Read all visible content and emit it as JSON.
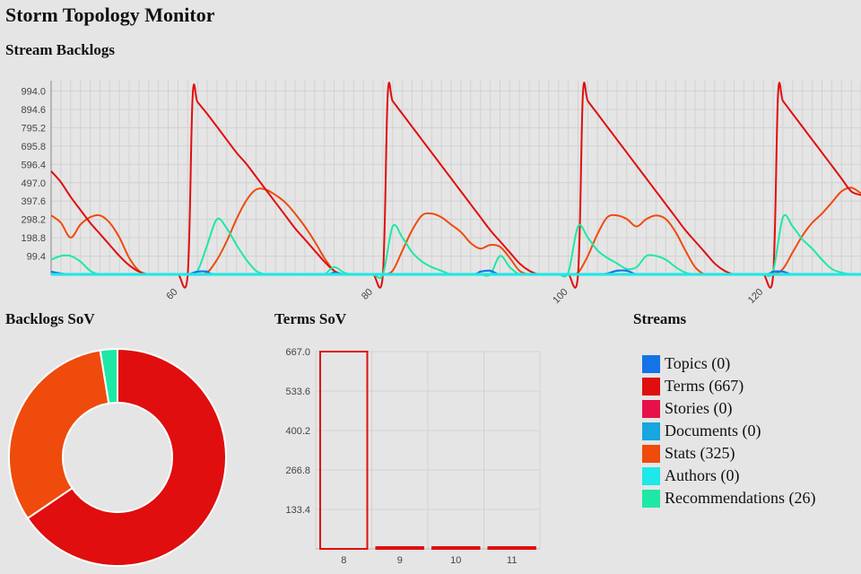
{
  "app": {
    "title": "Storm Topology Monitor"
  },
  "colors": {
    "Topics": "#1473e6",
    "Terms": "#e00e0e",
    "Stories": "#e8104a",
    "Documents": "#17a6e0",
    "Stats": "#ee4b0c",
    "Authors": "#1ee8e8",
    "Recommendations": "#1ee8a6"
  },
  "chart_data": [
    {
      "type": "line",
      "title": "Stream Backlogs",
      "xlim": [
        47,
        130
      ],
      "ylim": [
        0,
        1050
      ],
      "yticks": [
        "994.0",
        "894.6",
        "795.2",
        "695.8",
        "596.4",
        "497.0",
        "397.6",
        "298.2",
        "198.8",
        "99.4"
      ],
      "yticks_values": [
        994.0,
        894.6,
        795.2,
        695.8,
        596.4,
        497.0,
        397.6,
        298.2,
        198.8,
        99.4
      ],
      "xticks": [
        "60",
        "80",
        "100",
        "120"
      ],
      "xticks_values": [
        60,
        80,
        100,
        120
      ],
      "grid": true,
      "series": [
        {
          "name": "Terms",
          "color": "#e00e0e",
          "x": [
            47,
            48,
            49,
            50,
            51,
            52,
            53,
            54,
            55,
            56,
            57,
            58,
            59,
            60,
            61,
            61.5,
            62,
            63,
            64,
            65,
            66,
            67,
            68,
            69,
            70,
            71,
            72,
            73,
            74,
            75,
            76,
            77,
            78,
            79,
            80,
            81,
            81.5,
            82,
            83,
            84,
            85,
            86,
            87,
            88,
            89,
            90,
            91,
            92,
            93,
            94,
            95,
            96,
            97,
            98,
            99,
            100,
            101,
            101.5,
            102,
            103,
            104,
            105,
            106,
            107,
            108,
            109,
            110,
            111,
            112,
            113,
            114,
            115,
            116,
            117,
            118,
            119,
            120,
            121,
            121.5,
            122,
            123,
            124,
            125,
            126,
            127,
            128,
            129,
            130
          ],
          "y": [
            560,
            500,
            420,
            350,
            280,
            220,
            160,
            100,
            50,
            15,
            0,
            0,
            0,
            0,
            0,
            965,
            935,
            870,
            800,
            730,
            660,
            600,
            530,
            460,
            390,
            320,
            250,
            190,
            130,
            70,
            20,
            0,
            0,
            0,
            0,
            0,
            975,
            940,
            870,
            800,
            730,
            660,
            590,
            520,
            450,
            380,
            310,
            240,
            180,
            120,
            60,
            20,
            0,
            0,
            0,
            0,
            0,
            975,
            940,
            870,
            800,
            730,
            660,
            590,
            520,
            450,
            380,
            310,
            240,
            180,
            120,
            60,
            20,
            0,
            0,
            0,
            0,
            0,
            975,
            940,
            870,
            800,
            730,
            660,
            590,
            520,
            450,
            430
          ]
        },
        {
          "name": "Stats",
          "color": "#ee4b0c",
          "x": [
            47,
            48,
            49,
            50,
            51,
            52,
            53,
            54,
            55,
            56,
            57,
            58,
            59,
            60,
            61,
            62,
            63,
            64,
            65,
            66,
            67,
            68,
            69,
            70,
            71,
            72,
            73,
            74,
            75,
            76,
            77,
            78,
            79,
            80,
            81,
            82,
            83,
            84,
            85,
            86,
            87,
            88,
            89,
            90,
            91,
            92,
            93,
            94,
            95,
            96,
            97,
            98,
            99,
            100,
            101,
            102,
            103,
            104,
            105,
            106,
            107,
            108,
            109,
            110,
            111,
            112,
            113,
            114,
            115,
            116,
            117,
            118,
            119,
            120,
            121,
            122,
            123,
            124,
            125,
            126,
            127,
            128,
            129,
            130
          ],
          "y": [
            320,
            280,
            200,
            270,
            310,
            320,
            280,
            200,
            90,
            20,
            0,
            0,
            0,
            0,
            0,
            0,
            10,
            80,
            180,
            300,
            400,
            460,
            460,
            430,
            390,
            330,
            260,
            180,
            90,
            20,
            0,
            0,
            0,
            0,
            0,
            20,
            130,
            240,
            320,
            330,
            310,
            270,
            230,
            170,
            140,
            160,
            150,
            90,
            20,
            0,
            0,
            0,
            0,
            0,
            10,
            100,
            220,
            310,
            320,
            300,
            260,
            300,
            320,
            300,
            230,
            130,
            40,
            0,
            0,
            0,
            0,
            0,
            0,
            0,
            0,
            30,
            120,
            210,
            280,
            330,
            390,
            450,
            470,
            440
          ]
        },
        {
          "name": "Recommendations",
          "color": "#1ee8a6",
          "x": [
            47,
            48,
            49,
            50,
            51,
            52,
            53,
            54,
            55,
            56,
            57,
            58,
            59,
            60,
            61,
            62,
            63,
            64,
            65,
            66,
            67,
            68,
            69,
            70,
            71,
            72,
            73,
            74,
            75,
            76,
            77,
            78,
            79,
            80,
            81,
            82,
            83,
            84,
            85,
            86,
            87,
            88,
            89,
            90,
            91,
            92,
            93,
            94,
            95,
            96,
            97,
            98,
            99,
            100,
            101,
            102,
            103,
            104,
            105,
            106,
            107,
            108,
            109,
            110,
            111,
            112,
            113,
            114,
            115,
            116,
            117,
            118,
            119,
            120,
            121,
            122,
            123,
            124,
            125,
            126,
            127,
            128,
            129,
            130
          ],
          "y": [
            80,
            100,
            100,
            70,
            20,
            0,
            0,
            0,
            0,
            0,
            0,
            0,
            0,
            0,
            0,
            20,
            160,
            300,
            250,
            160,
            80,
            20,
            0,
            0,
            0,
            0,
            0,
            0,
            0,
            40,
            10,
            0,
            0,
            0,
            0,
            260,
            200,
            120,
            70,
            40,
            20,
            0,
            0,
            0,
            0,
            0,
            100,
            40,
            0,
            0,
            0,
            0,
            0,
            10,
            260,
            200,
            130,
            90,
            60,
            30,
            40,
            100,
            100,
            80,
            40,
            10,
            0,
            0,
            0,
            0,
            0,
            0,
            0,
            0,
            20,
            310,
            260,
            190,
            140,
            80,
            30,
            10,
            0,
            0
          ]
        },
        {
          "name": "Documents",
          "color": "#17a6e0",
          "x": [
            47,
            48,
            49,
            50,
            55,
            60,
            61,
            62,
            63,
            64,
            70,
            75,
            76,
            77,
            78,
            80,
            85,
            90,
            91,
            92,
            93,
            95,
            100,
            101,
            102,
            103,
            104,
            105,
            106,
            107,
            108,
            110,
            115,
            120,
            121,
            122,
            123,
            125,
            130
          ],
          "y": [
            15,
            5,
            0,
            0,
            0,
            0,
            0,
            15,
            15,
            0,
            0,
            0,
            10,
            0,
            0,
            0,
            0,
            0,
            15,
            20,
            0,
            0,
            0,
            0,
            0,
            0,
            5,
            20,
            20,
            0,
            0,
            0,
            0,
            0,
            15,
            15,
            0,
            0,
            0
          ]
        },
        {
          "name": "Topics",
          "color": "#1473e6",
          "x": [
            47,
            48,
            49,
            50,
            55,
            60,
            61,
            62,
            63,
            64,
            70,
            75,
            76,
            77,
            78,
            80,
            85,
            90,
            91,
            92,
            93,
            95,
            100,
            101,
            102,
            103,
            104,
            105,
            106,
            107,
            108,
            110,
            115,
            120,
            121,
            122,
            123,
            125,
            130
          ],
          "y": [
            15,
            5,
            0,
            0,
            0,
            0,
            0,
            15,
            15,
            0,
            0,
            0,
            10,
            0,
            0,
            0,
            0,
            0,
            15,
            20,
            0,
            0,
            0,
            0,
            0,
            0,
            5,
            20,
            20,
            0,
            0,
            0,
            0,
            0,
            15,
            15,
            0,
            0,
            0
          ]
        },
        {
          "name": "Authors",
          "color": "#1ee8e8",
          "x": [
            47,
            130
          ],
          "y": [
            3,
            3
          ]
        }
      ]
    },
    {
      "type": "pie",
      "title": "Backlogs SoV",
      "labels": [
        "Terms",
        "Stats",
        "Recommendations"
      ],
      "values": [
        667,
        325,
        26
      ],
      "colors": [
        "#e00e0e",
        "#ee4b0c",
        "#1ee8a6"
      ]
    },
    {
      "type": "bar",
      "title": "Terms SoV",
      "categories": [
        "8",
        "9",
        "10",
        "11"
      ],
      "values": [
        667,
        0,
        0,
        0
      ],
      "ylim": [
        0,
        667
      ],
      "yticks": [
        "667.0",
        "533.6",
        "400.2",
        "266.8",
        "133.4"
      ],
      "yticks_values": [
        667.0,
        533.6,
        400.2,
        266.8,
        133.4
      ],
      "color": "#e00e0e"
    }
  ],
  "legend": {
    "title": "Streams",
    "items": [
      {
        "label": "Topics (0)",
        "color": "#1473e6"
      },
      {
        "label": "Terms (667)",
        "color": "#e00e0e"
      },
      {
        "label": "Stories (0)",
        "color": "#e8104a"
      },
      {
        "label": "Documents (0)",
        "color": "#17a6e0"
      },
      {
        "label": "Stats (325)",
        "color": "#ee4b0c"
      },
      {
        "label": "Authors (0)",
        "color": "#1ee8e8"
      },
      {
        "label": "Recommendations (26)",
        "color": "#1ee8a6"
      }
    ]
  }
}
